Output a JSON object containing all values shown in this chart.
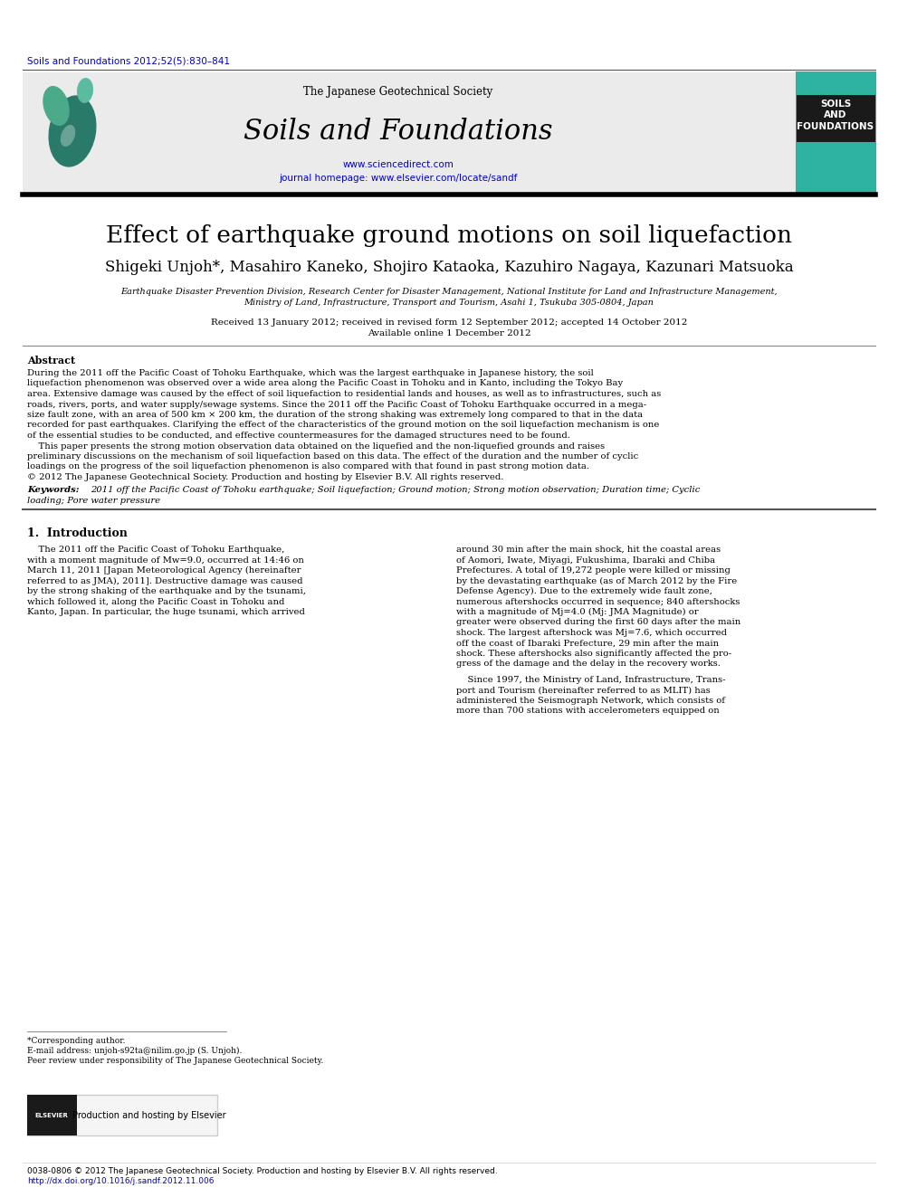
{
  "bg_color": "#ffffff",
  "header_bar_color": "#1a1a1a",
  "journal_header_bg": "#e8e8e8",
  "teal_color": "#2db3a0",
  "blue_link_color": "#0000cc",
  "dark_teal_logo": "#2a7a6a",
  "citation_line": "Soils and Foundations 2012;52(5):830–841",
  "journal_society": "The Japanese Geotechnical Society",
  "journal_name": "Soils and Foundations",
  "journal_url": "www.sciencedirect.com",
  "journal_homepage": "journal homepage: www.elsevier.com/locate/sandf",
  "article_title": "Effect of earthquake ground motions on soil liquefaction",
  "authors": "Shigeki Unjoh*, Masahiro Kaneko, Shojiro Kataoka, Kazuhiro Nagaya, Kazunari Matsuoka",
  "affiliation_line1": "Earthquake Disaster Prevention Division, Research Center for Disaster Management, National Institute for Land and Infrastructure Management,",
  "affiliation_line2": "Ministry of Land, Infrastructure, Transport and Tourism, Asahi 1, Tsukuba 305-0804, Japan",
  "received_line": "Received 13 January 2012; received in revised form 12 September 2012; accepted 14 October 2012",
  "available_line": "Available online 1 December 2012",
  "abstract_label": "Abstract",
  "abstract_text1": "During the 2011 off the Pacific Coast of Tohoku Earthquake, which was the largest earthquake in Japanese history, the soil liquefaction phenomenon was observed over a wide area along the Pacific Coast in Tohoku and in Kanto, including the Tokyo Bay area. Extensive damage was caused by the effect of soil liquefaction to residential lands and houses, as well as to infrastructures, such as roads, rivers, ports, and water supply/sewage systems. Since the 2011 off the Pacific Coast of Tohoku Earthquake occurred in a mega-size fault zone, with an area of 500 km × 200 km, the duration of the strong shaking was extremely long compared to that in the data recorded for past earthquakes. Clarifying the effect of the characteristics of the ground motion on the soil liquefaction mechanism is one of the essential studies to be conducted, and effective countermeasures for the damaged structures need to be found.",
  "abstract_text2": "This paper presents the strong motion observation data obtained on the liquefied and the non-liquefied grounds and raises preliminary discussions on the mechanism of soil liquefaction based on this data. The effect of the duration and the number of cyclic loadings on the progress of the soil liquefaction phenomenon is also compared with that found in past strong motion data.",
  "abstract_copyright": "© 2012 The Japanese Geotechnical Society. Production and hosting by Elsevier B.V. All rights reserved.",
  "keywords_label": "Keywords:",
  "keywords_text": "2011 off the Pacific Coast of Tohoku earthquake; Soil liquefaction; Ground motion; Strong motion observation; Duration time; Cyclic loading; Pore water pressure",
  "section1_label": "1.  Introduction",
  "intro_col1_para1": "The 2011 off the Pacific Coast of Tohoku Earthquake, with a moment magnitude of Mw=9.0, occurred at 14:46 on March 11, 2011 [Japan Meteorological Agency (hereinafter referred to as JMA), 2011]. Destructive damage was caused by the strong shaking of the earthquake and by the tsunami, which followed it, along the Pacific Coast in Tohoku and Kanto, Japan. In particular, the huge tsunami, which arrived",
  "intro_col2_para1": "around 30 min after the main shock, hit the coastal areas of Aomori, Iwate, Miyagi, Fukushima, Ibaraki and Chiba Prefectures. A total of 19,272 people were killed or missing by the devastating earthquake (as of March 2012 by the Fire Defense Agency). Due to the extremely wide fault zone, numerous aftershocks occurred in sequence; 840 aftershocks with a magnitude of Mj=4.0 (Mj: JMA Magnitude) or greater were observed during the first 60 days after the main shock. The largest aftershock was Mj=7.6, which occurred off the coast of Ibaraki Prefecture, 29 min after the main shock. These aftershocks also significantly affected the progress of the damage and the delay in the recovery works.",
  "intro_col2_para2": "Since 1997, the Ministry of Land, Infrastructure, Transport and Tourism (hereinafter referred to as MLIT) has administered the Seismograph Network, which consists of more than 700 stations with accelerometers equipped on",
  "footnote_asterisk": "*Corresponding author.",
  "footnote_email": "E-mail address: unjoh-s92ta@nilim.go.jp (S. Unjoh).",
  "footnote_peer": "Peer review under responsibility of The Japanese Geotechnical Society.",
  "footer_bar_bg": "#f0f0f0",
  "footer_elsevier_text": "Production and hosting by Elsevier",
  "bottom_line1": "0038-0806 © 2012 The Japanese Geotechnical Society. Production and hosting by Elsevier B.V. All rights reserved.",
  "bottom_line2": "http://dx.doi.org/10.1016/j.sandf.2012.11.006"
}
